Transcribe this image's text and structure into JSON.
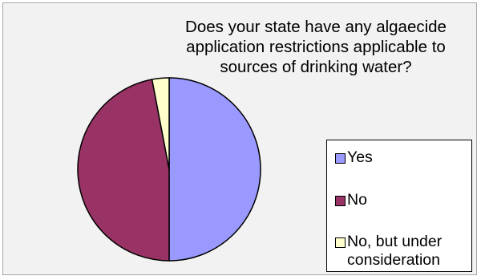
{
  "chart_data": {
    "type": "pie",
    "title": "Does your state have any algaecide\napplication restrictions applicable to\nsources of drinking water?",
    "categories": [
      "Yes",
      "No",
      "No, but under\nconsideration"
    ],
    "values": [
      50,
      47,
      3
    ],
    "colors": [
      "#9999ff",
      "#993366",
      "#ffffcc"
    ],
    "legend_position": "right"
  }
}
